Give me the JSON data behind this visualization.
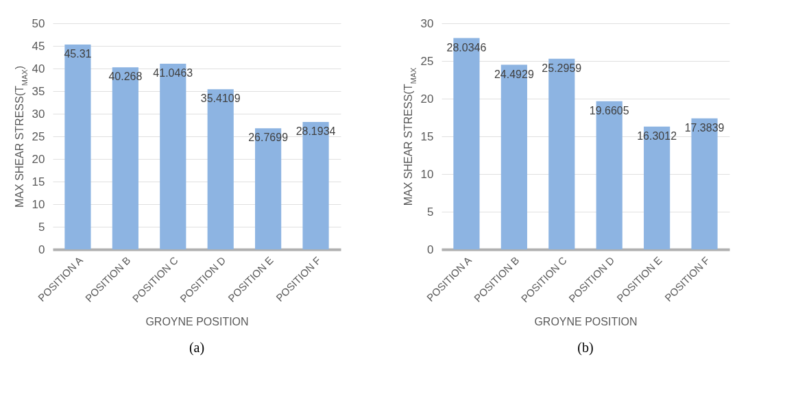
{
  "chart_data": [
    {
      "type": "bar",
      "title": "(a)",
      "xlabel": "GROYNE POSITION",
      "ylabel": "MAX SHEAR STRESS(T$_{MAX}$)",
      "categories": [
        "POSITION A",
        "POSITION B",
        "POSITION C",
        "POSITION D",
        "POSITION E",
        "POSITION F"
      ],
      "values": [
        45.31,
        40.268,
        41.0463,
        35.4109,
        26.7699,
        28.1934
      ],
      "color": "#8db4e2",
      "ylim": [
        0,
        50
      ],
      "yticks": [
        0,
        5,
        10,
        15,
        20,
        25,
        30,
        35,
        40,
        45,
        50
      ],
      "grid": "y",
      "data_labels": true
    },
    {
      "type": "bar",
      "title": "(b)",
      "xlabel": "GROYNE POSITION",
      "ylabel": "MAX SHEAR STRESS(T$_{MAX}$",
      "categories": [
        "POSITION A",
        "POSITION B",
        "POSITION C",
        "POSITION D",
        "POSITION E",
        "POSITION F"
      ],
      "values": [
        28.0346,
        24.4929,
        25.2959,
        19.6605,
        16.3012,
        17.3839
      ],
      "color": "#8db4e2",
      "ylim": [
        0,
        30
      ],
      "yticks": [
        0,
        5,
        10,
        15,
        20,
        25,
        30
      ],
      "grid": "y",
      "data_labels": true
    }
  ]
}
